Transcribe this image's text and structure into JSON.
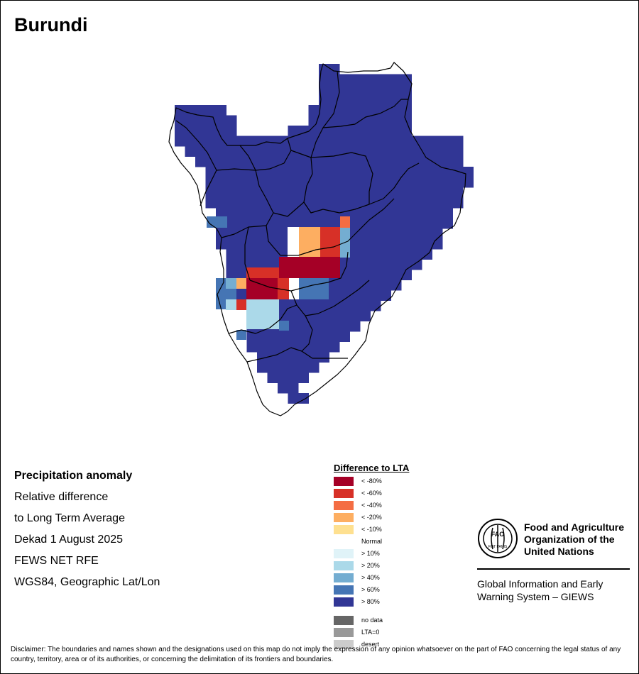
{
  "title": "Burundi",
  "info": {
    "line1": "Precipitation anomaly",
    "line2": "Relative difference",
    "line3": "to Long Term Average",
    "line4": "Dekad 1 August 2025",
    "line5": "FEWS NET RFE",
    "line6": "WGS84, Geographic Lat/Lon"
  },
  "legend": {
    "title": "Difference to LTA",
    "items": [
      {
        "label": "< -80%",
        "color": "#a50026"
      },
      {
        "label": "< -60%",
        "color": "#d73027"
      },
      {
        "label": "< -40%",
        "color": "#f46d43"
      },
      {
        "label": "< -20%",
        "color": "#fdae61"
      },
      {
        "label": "< -10%",
        "color": "#fee090"
      },
      {
        "label": "Normal",
        "color": "#ffffff"
      },
      {
        "label": "> 10%",
        "color": "#e0f3f8"
      },
      {
        "label": "> 20%",
        "color": "#abd9e9"
      },
      {
        "label": "> 40%",
        "color": "#74add1"
      },
      {
        "label": "> 60%",
        "color": "#4575b4"
      },
      {
        "label": "> 80%",
        "color": "#313695"
      }
    ],
    "extra": [
      {
        "label": "no data",
        "color": "#666666"
      },
      {
        "label": "LTA=0",
        "color": "#999999"
      },
      {
        "label": "desert",
        "color": "#cccccc"
      }
    ]
  },
  "fao": {
    "name_line1": "Food and Agriculture",
    "name_line2": "Organization of the",
    "name_line3": "United Nations",
    "logo_letters": "FAO",
    "logo_motto": "FIAT PANIS",
    "giews_line1": "Global Information and Early",
    "giews_line2": "Warning System – GIEWS"
  },
  "disclaimer": "Disclaimer: The boundaries and names shown and the designations used on this map do not imply the expression of any opinion whatsoever on the part of FAO concerning the legal status of any country, territory, area or of its authorities, or concerning the delimitation of its frontiers and boundaries."
}
